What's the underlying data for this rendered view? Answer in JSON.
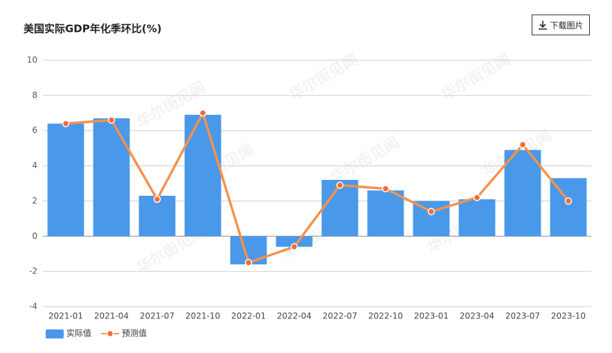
{
  "chart_data": {
    "type": "bar",
    "title": "美国实际GDP年化季环比(%)",
    "download_button": "下载图片",
    "watermark": "华尔街见闻",
    "categories": [
      "2021-01",
      "2021-04",
      "2021-07",
      "2021-10",
      "2022-01",
      "2022-04",
      "2022-07",
      "2022-10",
      "2023-01",
      "2023-04",
      "2023-07",
      "2023-10"
    ],
    "series": [
      {
        "name": "实际值",
        "type": "bar",
        "color": "#4a98e9",
        "values": [
          6.4,
          6.7,
          2.3,
          6.9,
          -1.6,
          -0.6,
          3.2,
          2.6,
          2.0,
          2.1,
          4.9,
          3.3
        ]
      },
      {
        "name": "预测值",
        "type": "line",
        "color": "#f5924a",
        "values": [
          6.4,
          6.6,
          2.1,
          7.0,
          -1.5,
          -0.6,
          2.9,
          2.7,
          1.4,
          2.2,
          5.2,
          2.0
        ]
      }
    ],
    "ylim": [
      -4,
      10
    ],
    "yticks": [
      -4,
      -2,
      0,
      2,
      4,
      6,
      8,
      10
    ],
    "grid": true
  }
}
